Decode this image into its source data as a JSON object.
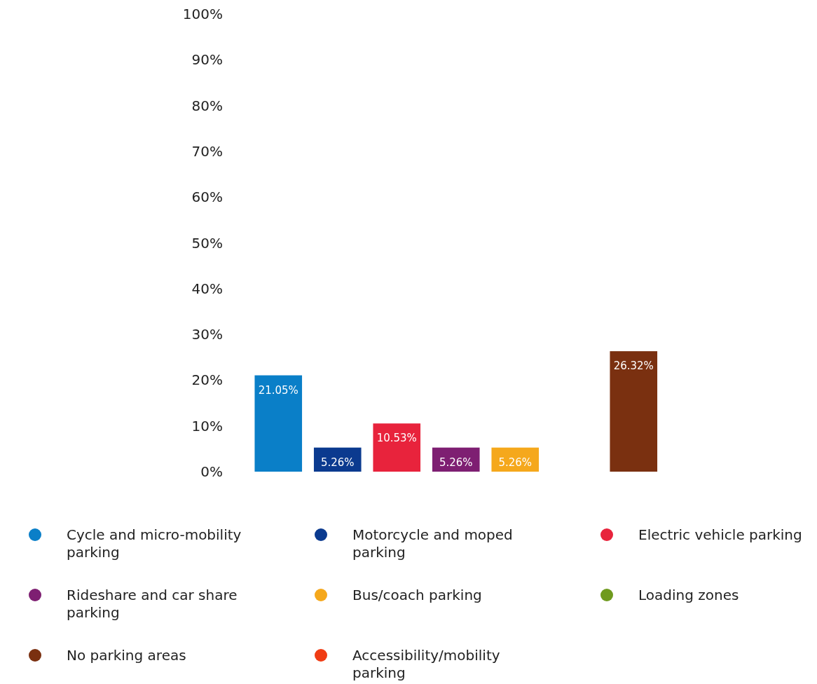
{
  "chart_data": {
    "type": "bar",
    "categories": [
      null
    ],
    "series": [
      {
        "name": "Cycle and micro-mobility parking",
        "color": "#0a7fc8",
        "values": [
          21.05
        ],
        "value_labels": [
          "21.05%"
        ]
      },
      {
        "name": "Motorcycle and moped parking",
        "color": "#0b3a8f",
        "values": [
          5.26
        ],
        "value_labels": [
          "5.26%"
        ]
      },
      {
        "name": "Electric vehicle parking",
        "color": "#e8233c",
        "values": [
          10.53
        ],
        "value_labels": [
          "10.53%"
        ]
      },
      {
        "name": "Rideshare and car share parking",
        "color": "#7e1f72",
        "values": [
          5.26
        ],
        "value_labels": [
          "5.26%"
        ]
      },
      {
        "name": "Bus/coach parking",
        "color": "#f5a81c",
        "values": [
          5.26
        ],
        "value_labels": [
          "5.26%"
        ]
      },
      {
        "name": "Loading zones",
        "color": "#6f9a1e",
        "values": [
          0
        ],
        "value_labels": [
          null
        ]
      },
      {
        "name": "No parking areas",
        "color": "#7a3010",
        "values": [
          26.32
        ],
        "value_labels": [
          "26.32%"
        ]
      },
      {
        "name": "Accessibility/mobility parking",
        "color": "#f03c14",
        "values": [
          0
        ],
        "value_labels": [
          null
        ]
      }
    ],
    "ylim": [
      0,
      100
    ],
    "yticks": [
      {
        "value": 0,
        "label": "0%"
      },
      {
        "value": 10,
        "label": "10%"
      },
      {
        "value": 20,
        "label": "20%"
      },
      {
        "value": 30,
        "label": "30%"
      },
      {
        "value": 40,
        "label": "40%"
      },
      {
        "value": 50,
        "label": "50%"
      },
      {
        "value": 60,
        "label": "60%"
      },
      {
        "value": 70,
        "label": "70%"
      },
      {
        "value": 80,
        "label": "80%"
      },
      {
        "value": 90,
        "label": "90%"
      },
      {
        "value": 100,
        "label": "100%"
      }
    ],
    "grid": false,
    "legend": "bottom"
  }
}
